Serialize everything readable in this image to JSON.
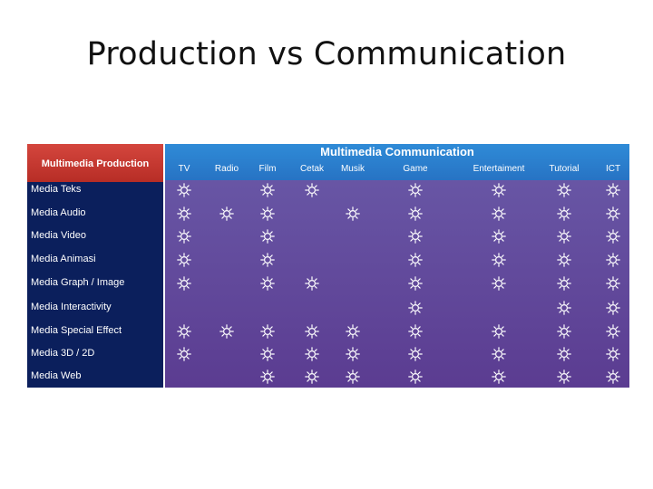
{
  "title": "Production vs Communication",
  "production": {
    "header": "Multimedia Production",
    "rows": [
      "Media Teks",
      "Media Audio",
      "Media Video",
      "Media Animasi",
      "Media Graph / Image",
      "Media Interactivity",
      "Media Special Effect",
      "Media 3D / 2D",
      "Media Web"
    ]
  },
  "communication": {
    "header": "Multimedia Communication",
    "columns": [
      "TV",
      "Radio",
      "Film",
      "Cetak",
      "Musik",
      "Game",
      "Entertaiment",
      "Tutorial",
      "ICT"
    ]
  },
  "symbol_icon": "sun-icon",
  "marks": [
    [
      "Media Teks",
      [
        "TV",
        "Film",
        "Cetak",
        "Game",
        "Entertaiment",
        "Tutorial",
        "ICT"
      ]
    ],
    [
      "Media Audio",
      [
        "TV",
        "Radio",
        "Film",
        "Musik",
        "Game",
        "Entertaiment",
        "Tutorial",
        "ICT"
      ]
    ],
    [
      "Media Video",
      [
        "TV",
        "Film",
        "Game",
        "Entertaiment",
        "Tutorial",
        "ICT"
      ]
    ],
    [
      "Media Animasi",
      [
        "TV",
        "Film",
        "Game",
        "Entertaiment",
        "Tutorial",
        "ICT"
      ]
    ],
    [
      "Media Graph / Image",
      [
        "TV",
        "Film",
        "Cetak",
        "Game",
        "Entertaiment",
        "Tutorial",
        "ICT"
      ]
    ],
    [
      "Media Interactivity",
      [
        "Game",
        "Tutorial",
        "ICT"
      ]
    ],
    [
      "Media Special Effect",
      [
        "TV",
        "Radio",
        "Film",
        "Cetak",
        "Musik",
        "Game",
        "Entertaiment",
        "Tutorial",
        "ICT"
      ]
    ],
    [
      "Media 3D / 2D",
      [
        "TV",
        "Film",
        "Cetak",
        "Musik",
        "Game",
        "Entertaiment",
        "Tutorial",
        "ICT"
      ]
    ],
    [
      "Media Web",
      [
        "Film",
        "Cetak",
        "Musik",
        "Game",
        "Entertaiment",
        "Tutorial",
        "ICT"
      ]
    ]
  ]
}
